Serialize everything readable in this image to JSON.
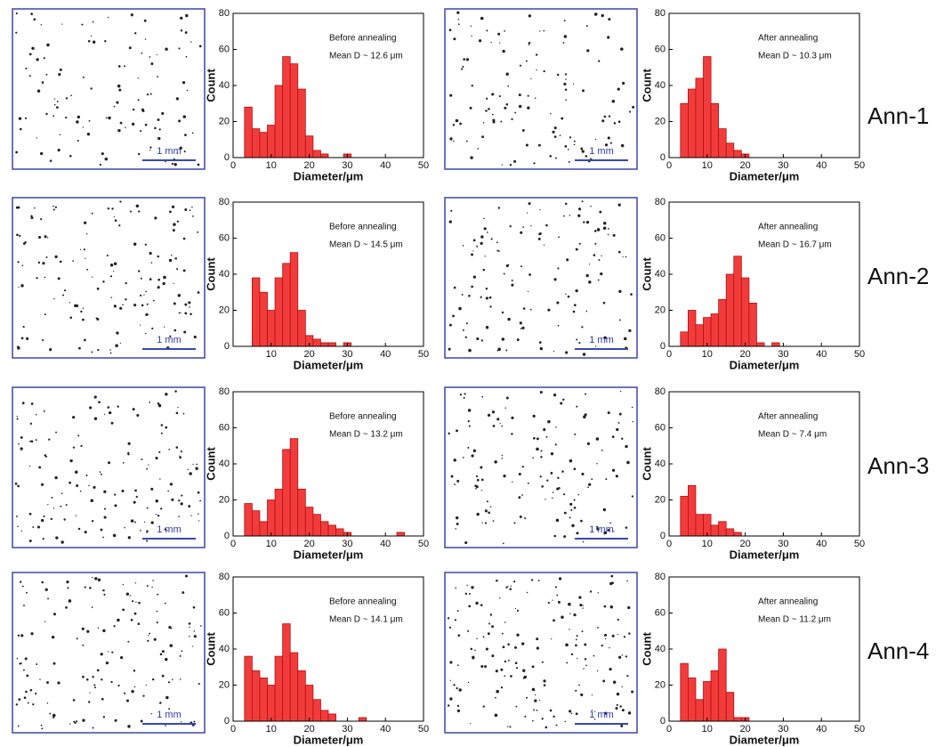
{
  "chart_data": [
    {
      "type": "histogram",
      "annotations": [
        "Before annealing",
        "Mean D ~ 12.6 μm"
      ],
      "xlabel": "Diameter/μm",
      "ylabel": "Count",
      "color": "#f23c3c",
      "bins": [
        3,
        5,
        7,
        9,
        11,
        13,
        15,
        17,
        19,
        21,
        23,
        25,
        27,
        29,
        31
      ],
      "values": [
        28,
        16,
        14,
        18,
        40,
        56,
        52,
        38,
        12,
        4,
        2,
        0,
        0,
        2
      ],
      "xlim": [
        0,
        50
      ],
      "ylim": [
        0,
        80
      ],
      "xticks": [
        0,
        10,
        20,
        30,
        40,
        50
      ],
      "yticks": [
        0,
        20,
        40,
        60,
        80
      ]
    },
    {
      "type": "histogram",
      "annotations": [
        "After annealing",
        "Mean D ~ 10.3 μm"
      ],
      "xlabel": "Diameter/μm",
      "ylabel": "Count",
      "color": "#f23c3c",
      "bins": [
        3,
        5,
        7,
        9,
        11,
        13,
        15,
        17,
        19,
        21
      ],
      "values": [
        30,
        38,
        44,
        56,
        30,
        16,
        8,
        4,
        2
      ],
      "xlim": [
        0,
        50
      ],
      "ylim": [
        0,
        80
      ],
      "xticks": [
        0,
        10,
        20,
        30,
        40,
        50
      ],
      "yticks": [
        0,
        20,
        40,
        60,
        80
      ]
    },
    {
      "type": "histogram",
      "annotations": [
        "Before annealing",
        "Mean D ~ 14.5 μm"
      ],
      "xlabel": "Diameter/μm",
      "ylabel": "Count",
      "color": "#f23c3c",
      "bins": [
        5,
        7,
        9,
        11,
        13,
        15,
        17,
        19,
        21,
        23,
        25,
        27,
        29,
        31
      ],
      "values": [
        38,
        30,
        20,
        38,
        46,
        52,
        20,
        6,
        4,
        2,
        2,
        0,
        2
      ],
      "xlim": [
        0,
        50
      ],
      "ylim": [
        0,
        80
      ],
      "xticks": [
        10,
        20,
        30,
        40,
        50
      ],
      "yticks": [
        0,
        20,
        40,
        60,
        80
      ]
    },
    {
      "type": "histogram",
      "annotations": [
        "After annealing",
        "Mean D ~ 16.7 μm"
      ],
      "xlabel": "Diameter/μm",
      "ylabel": "Count",
      "color": "#f23c3c",
      "bins": [
        3,
        5,
        7,
        9,
        11,
        13,
        15,
        17,
        19,
        21,
        23,
        25,
        27,
        29
      ],
      "values": [
        8,
        20,
        12,
        16,
        18,
        26,
        40,
        50,
        38,
        24,
        2,
        0,
        2
      ],
      "xlim": [
        0,
        50
      ],
      "ylim": [
        0,
        80
      ],
      "xticks": [
        0,
        10,
        20,
        30,
        40,
        50
      ],
      "yticks": [
        0,
        20,
        40,
        60,
        80
      ]
    },
    {
      "type": "histogram",
      "annotations": [
        "Before annealing",
        "Mean D ~ 13.2 μm"
      ],
      "xlabel": "Diameter/μm",
      "ylabel": "Count",
      "color": "#f23c3c",
      "bins": [
        3,
        5,
        7,
        9,
        11,
        13,
        15,
        17,
        19,
        21,
        23,
        25,
        27,
        29,
        31,
        33,
        35,
        37,
        39,
        41,
        43,
        45
      ],
      "values": [
        18,
        14,
        8,
        20,
        26,
        48,
        54,
        26,
        16,
        12,
        8,
        6,
        4,
        2,
        0,
        0,
        0,
        0,
        0,
        0,
        2
      ],
      "xlim": [
        0,
        50
      ],
      "ylim": [
        0,
        80
      ],
      "xticks": [
        0,
        10,
        20,
        30,
        40,
        50
      ],
      "yticks": [
        0,
        20,
        40,
        60,
        80
      ]
    },
    {
      "type": "histogram",
      "annotations": [
        "After annealing",
        "Mean D ~ 7.4 μm"
      ],
      "xlabel": "Diameter/μm",
      "ylabel": "Count",
      "color": "#f23c3c",
      "bins": [
        3,
        5,
        7,
        9,
        11,
        13,
        15,
        17,
        19
      ],
      "values": [
        22,
        28,
        12,
        12,
        6,
        8,
        4,
        2
      ],
      "xlim": [
        0,
        50
      ],
      "ylim": [
        0,
        80
      ],
      "xticks": [
        0,
        10,
        20,
        30,
        40,
        50
      ],
      "yticks": [
        0,
        20,
        40,
        60,
        80
      ]
    },
    {
      "type": "histogram",
      "annotations": [
        "Before annealing",
        "Mean D ~ 14.1 μm"
      ],
      "xlabel": "Diameter/μm",
      "ylabel": "Count",
      "color": "#f23c3c",
      "bins": [
        3,
        5,
        7,
        9,
        11,
        13,
        15,
        17,
        19,
        21,
        23,
        25,
        27,
        29,
        31,
        33,
        35
      ],
      "values": [
        36,
        28,
        24,
        20,
        36,
        54,
        38,
        28,
        20,
        12,
        6,
        4,
        0,
        0,
        0,
        2
      ],
      "xlim": [
        0,
        50
      ],
      "ylim": [
        0,
        80
      ],
      "xticks": [
        0,
        10,
        20,
        30,
        40,
        50
      ],
      "yticks": [
        0,
        20,
        40,
        60,
        80
      ]
    },
    {
      "type": "histogram",
      "annotations": [
        "After annealing",
        "Mean D ~ 11.2 μm"
      ],
      "xlabel": "Diameter/μm",
      "ylabel": "Count",
      "color": "#f23c3c",
      "bins": [
        3,
        5,
        7,
        9,
        11,
        13,
        15,
        17,
        19,
        21
      ],
      "values": [
        32,
        24,
        12,
        22,
        28,
        40,
        16,
        2,
        2
      ],
      "xlim": [
        0,
        50
      ],
      "ylim": [
        0,
        80
      ],
      "xticks": [
        0,
        10,
        20,
        30,
        40,
        50
      ],
      "yticks": [
        0,
        20,
        40,
        60,
        80
      ]
    }
  ],
  "rows": [
    "Ann-1",
    "Ann-2",
    "Ann-3",
    "Ann-4"
  ],
  "micrographs": [
    {
      "scale_label": "1 mm"
    },
    {
      "scale_label": "1 mm"
    },
    {
      "scale_label": "1 mm"
    },
    {
      "scale_label": "1 mm"
    },
    {
      "scale_label": "1 mm"
    },
    {
      "scale_label": "1 mm"
    },
    {
      "scale_label": "1 mm"
    },
    {
      "scale_label": "1 mm"
    }
  ]
}
